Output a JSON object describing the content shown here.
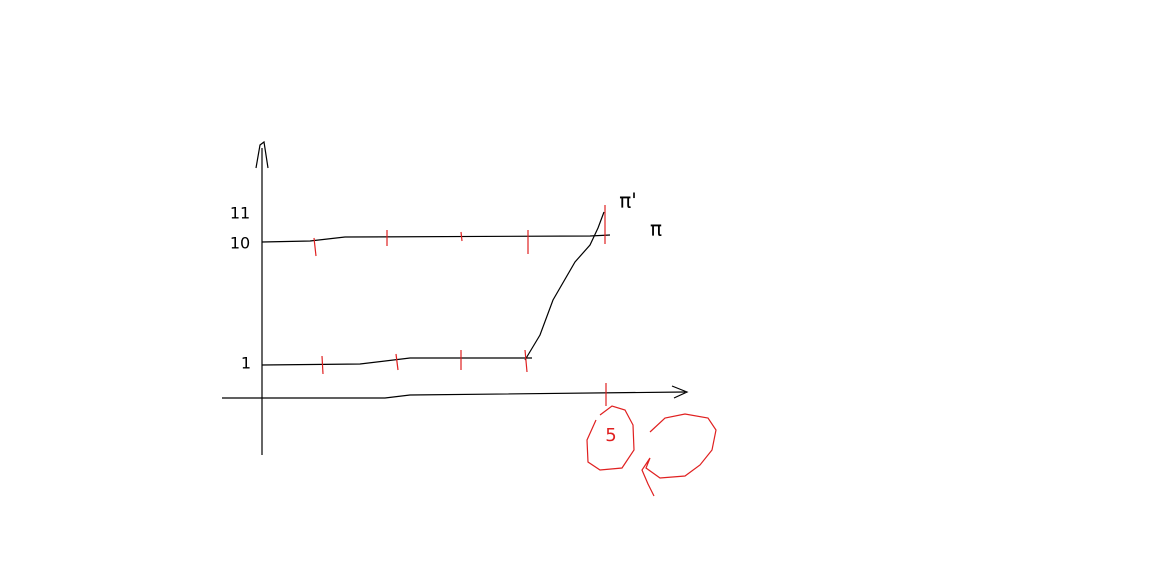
{
  "labels": {
    "y_upper": "11",
    "y_mid": "10",
    "y_low": "1",
    "x_mark": "5",
    "curve_prime": "π'",
    "curve": "π"
  }
}
